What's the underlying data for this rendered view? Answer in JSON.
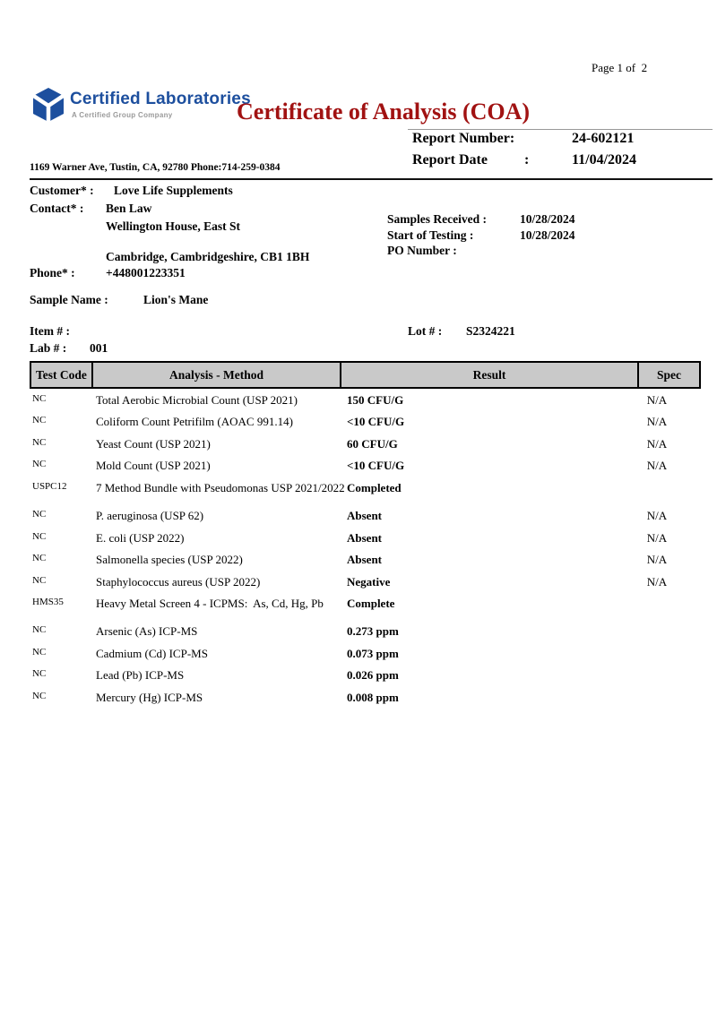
{
  "colors": {
    "brand_blue": "#1d4f9e",
    "title_red": "#a11212",
    "tagline_gray": "#9a9a9a",
    "table_header_bg": "#c9c9c9"
  },
  "page": {
    "page_label": "Page 1 of  2"
  },
  "brand": {
    "name": "Certified Laboratories",
    "tagline": "A Certified Group Company",
    "logo_icon": "cube-logo-icon"
  },
  "title": "Certificate of Analysis (COA)",
  "report": {
    "number_label": "Report Number:",
    "number": "24-602121",
    "date_label": "Report Date",
    "date_colon": ":",
    "date": "11/04/2024"
  },
  "lab_address": "1169 Warner Ave, Tustin, CA, 92780 Phone:714-259-0384",
  "customer": {
    "customer_label": "Customer* :",
    "customer_name": "Love Life Supplements",
    "contact_label": "Contact* :",
    "contact_name": "Ben Law",
    "address_line1": "Wellington House, East St",
    "address_line2": "Cambridge, Cambridgeshire, CB1 1BH",
    "phone_label": "Phone* :",
    "phone": "+448001223351"
  },
  "testing_info": {
    "samples_received_label": "Samples Received :",
    "samples_received": "10/28/2024",
    "start_of_testing_label": "Start of Testing :",
    "start_of_testing": "10/28/2024",
    "po_number_label": "PO Number :",
    "po_number": ""
  },
  "sample": {
    "sample_name_label": "Sample Name :",
    "sample_name": "Lion's Mane",
    "item_label": "Item # :",
    "item": "",
    "lot_label": "Lot # :",
    "lot": "S2324221",
    "lab_label": "Lab # :",
    "lab": "001"
  },
  "results_table": {
    "headers": [
      "Test Code",
      "Analysis - Method",
      "Result",
      "Spec"
    ],
    "rows": [
      {
        "test_code": "NC",
        "analysis_method": "Total Aerobic Microbial Count (USP 2021)",
        "result": "150 CFU/G",
        "spec": "N/A"
      },
      {
        "test_code": "NC",
        "analysis_method": "Coliform Count Petrifilm (AOAC 991.14)",
        "result": "<10 CFU/G",
        "spec": "N/A"
      },
      {
        "test_code": "NC",
        "analysis_method": "Yeast Count (USP 2021)",
        "result": "60 CFU/G",
        "spec": "N/A"
      },
      {
        "test_code": "NC",
        "analysis_method": "Mold Count (USP 2021)",
        "result": "<10 CFU/G",
        "spec": "N/A"
      },
      {
        "test_code": "USPC12",
        "analysis_method": "7 Method Bundle with Pseudomonas USP 2021/2022",
        "result": "Completed",
        "spec": ""
      },
      {
        "test_code": "NC",
        "analysis_method": "P. aeruginosa (USP 62)",
        "result": "Absent",
        "spec": "N/A"
      },
      {
        "test_code": "NC",
        "analysis_method": "E. coli (USP 2022)",
        "result": "Absent",
        "spec": "N/A"
      },
      {
        "test_code": "NC",
        "analysis_method": "Salmonella species (USP 2022)",
        "result": "Absent",
        "spec": "N/A"
      },
      {
        "test_code": "NC",
        "analysis_method": "Staphylococcus aureus (USP 2022)",
        "result": "Negative",
        "spec": "N/A"
      },
      {
        "test_code": "HMS35",
        "analysis_method": "Heavy Metal Screen 4 - ICPMS:  As, Cd, Hg, Pb",
        "result": "Complete",
        "spec": ""
      },
      {
        "test_code": "NC",
        "analysis_method": "Arsenic (As) ICP-MS",
        "result": "0.273 ppm",
        "spec": ""
      },
      {
        "test_code": "NC",
        "analysis_method": "Cadmium (Cd) ICP-MS",
        "result": "0.073 ppm",
        "spec": ""
      },
      {
        "test_code": "NC",
        "analysis_method": "Lead (Pb) ICP-MS",
        "result": "0.026 ppm",
        "spec": ""
      },
      {
        "test_code": "NC",
        "analysis_method": "Mercury (Hg) ICP-MS",
        "result": "0.008 ppm",
        "spec": ""
      }
    ]
  }
}
